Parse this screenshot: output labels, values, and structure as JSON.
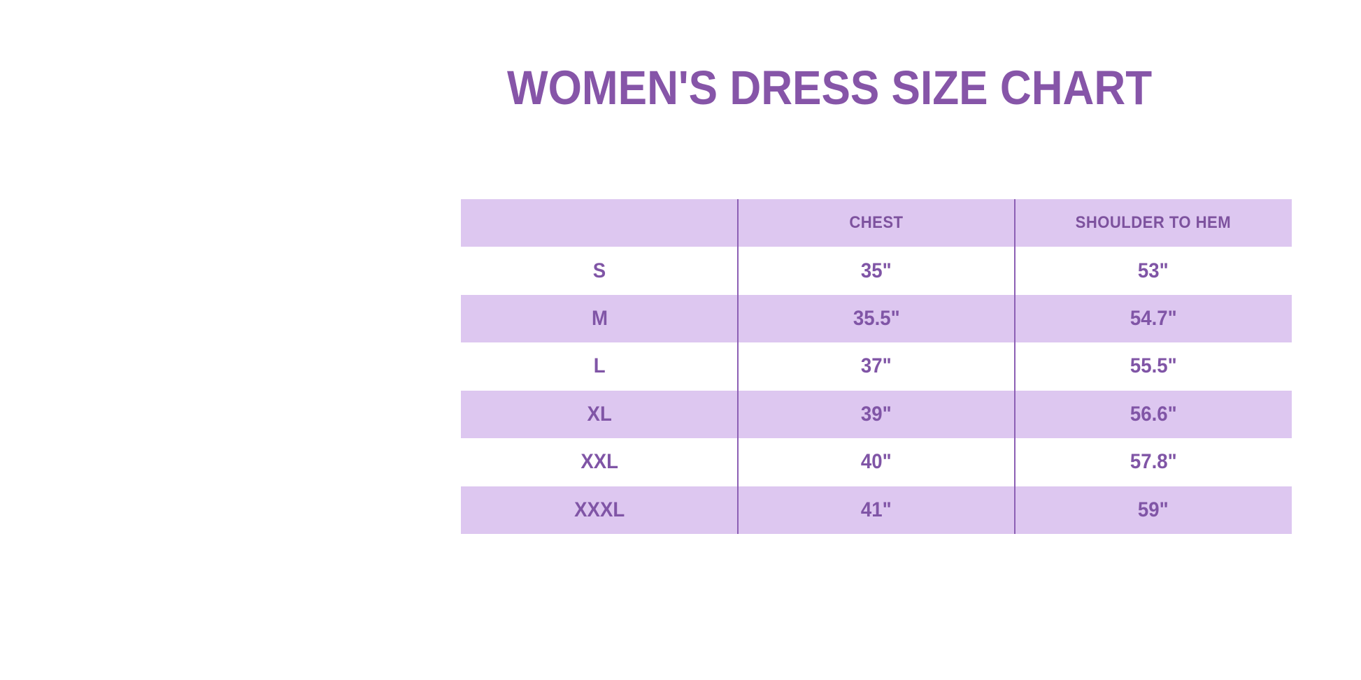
{
  "title": "WOMEN'S DRESS SIZE CHART",
  "colors": {
    "title_purple": "#8655a8",
    "table_text_purple": "#8055a6",
    "row_lavender": "#ddc7f0",
    "row_white": "#ffffff",
    "divider_purple": "#8c5fb4"
  },
  "table": {
    "columns": [
      "",
      "CHEST",
      "SHOULDER TO HEM"
    ],
    "rows": [
      {
        "size": "S",
        "chest": "35\"",
        "hem": "53\""
      },
      {
        "size": "M",
        "chest": "35.5\"",
        "hem": "54.7\""
      },
      {
        "size": "L",
        "chest": "37\"",
        "hem": "55.5\""
      },
      {
        "size": "XL",
        "chest": "39\"",
        "hem": "56.6\""
      },
      {
        "size": "XXL",
        "chest": "40\"",
        "hem": "57.8\""
      },
      {
        "size": "XXXL",
        "chest": "41\"",
        "hem": "59\""
      }
    ]
  },
  "chart_data": {
    "type": "table",
    "title": "WOMEN'S DRESS SIZE CHART",
    "columns": [
      "",
      "CHEST",
      "SHOULDER TO HEM"
    ],
    "categories": [
      "S",
      "M",
      "L",
      "XL",
      "XXL",
      "XXXL"
    ],
    "series": [
      {
        "name": "CHEST",
        "unit": "inches",
        "values": [
          35,
          35.5,
          37,
          39,
          40,
          41
        ]
      },
      {
        "name": "SHOULDER TO HEM",
        "unit": "inches",
        "values": [
          53,
          54.7,
          55.5,
          56.6,
          57.8,
          59
        ]
      }
    ],
    "layout": {
      "row_striping": "header and odd data rows lavender, others white",
      "text_alignment": "center",
      "gridlines": "two full-height vertical column dividers only"
    }
  }
}
